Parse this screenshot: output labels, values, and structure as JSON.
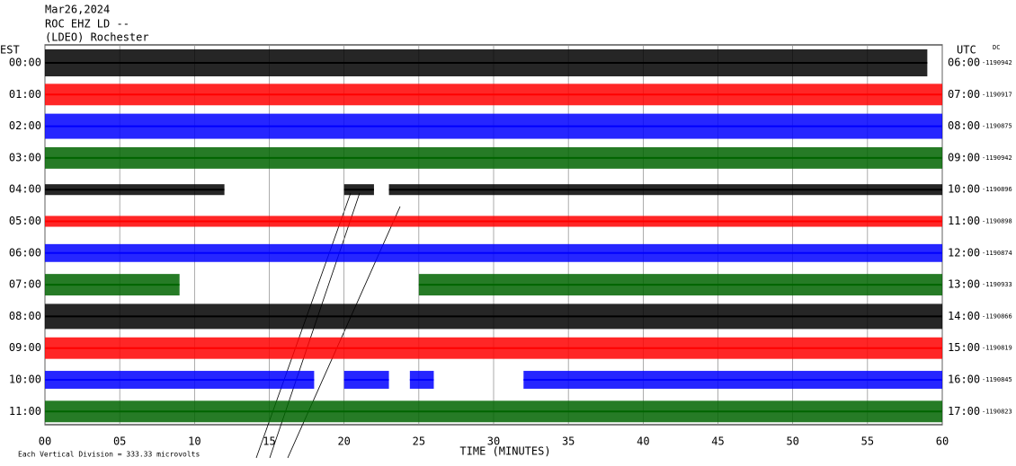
{
  "chart_data": {
    "type": "helicorder",
    "title_lines": [
      "Mar26,2024",
      "ROC EHZ LD --",
      "(LDEO) Rochester"
    ],
    "left_axis_label": "EST",
    "right_axis_label": "UTC",
    "dc_label": "DC",
    "x_axis_label": "TIME (MINUTES)",
    "scale_note": {
      "value": 333.33,
      "label": "Each Vertical Division =  333.33 microvolts"
    },
    "xlim": [
      0,
      60
    ],
    "xticks": [
      {
        "value": 0,
        "label": "00"
      },
      {
        "value": 5,
        "label": "05"
      },
      10,
      15,
      20,
      25,
      30,
      35,
      40,
      45,
      50,
      55,
      60
    ],
    "grid": true,
    "rows": [
      {
        "est": "00:00",
        "utc": "06:00",
        "dc": -1190942,
        "color": "#000000",
        "amplitude": 142,
        "segments": [
          [
            0,
            59
          ]
        ]
      },
      {
        "est": "01:00",
        "utc": "07:00",
        "dc": -1190917,
        "color": "#ff0000",
        "amplitude": 113,
        "segments": [
          [
            0,
            60
          ]
        ]
      },
      {
        "est": "02:00",
        "utc": "08:00",
        "dc": -1190875,
        "color": "#0000ff",
        "amplitude": 132,
        "segments": [
          [
            0,
            60
          ]
        ]
      },
      {
        "est": "03:00",
        "utc": "09:00",
        "dc": -1190942,
        "color": "#006400",
        "amplitude": 113,
        "segments": [
          [
            0,
            60
          ]
        ]
      },
      {
        "est": "04:00",
        "utc": "10:00",
        "dc": -1190896,
        "color": "#000000",
        "amplitude": 57,
        "segments": [
          [
            0,
            12
          ],
          [
            20,
            22
          ],
          [
            23,
            60
          ]
        ]
      },
      {
        "est": "05:00",
        "utc": "11:00",
        "dc": -1190898,
        "color": "#ff0000",
        "amplitude": 57,
        "segments": [
          [
            0,
            60
          ]
        ]
      },
      {
        "est": "06:00",
        "utc": "12:00",
        "dc": -1190874,
        "color": "#0000ff",
        "amplitude": 94,
        "segments": [
          [
            0,
            60
          ]
        ]
      },
      {
        "est": "07:00",
        "utc": "13:00",
        "dc": -1190933,
        "color": "#006400",
        "amplitude": 113,
        "segments": [
          [
            0,
            9
          ],
          [
            25,
            60
          ]
        ]
      },
      {
        "est": "08:00",
        "utc": "14:00",
        "dc": -1190866,
        "color": "#000000",
        "amplitude": 132,
        "segments": [
          [
            0,
            60
          ]
        ]
      },
      {
        "est": "09:00",
        "utc": "15:00",
        "dc": -1190819,
        "color": "#ff0000",
        "amplitude": 113,
        "segments": [
          [
            0,
            60
          ]
        ]
      },
      {
        "est": "10:00",
        "utc": "16:00",
        "dc": -1190845,
        "color": "#0000ff",
        "amplitude": 94,
        "segments": [
          [
            0,
            18
          ],
          [
            20,
            23
          ],
          [
            24.4,
            26
          ],
          [
            32,
            60
          ]
        ]
      },
      {
        "est": "11:00",
        "utc": "17:00",
        "dc": -1190823,
        "color": "#006400",
        "amplitude": 113,
        "segments": [
          [
            0,
            60
          ]
        ]
      }
    ]
  }
}
